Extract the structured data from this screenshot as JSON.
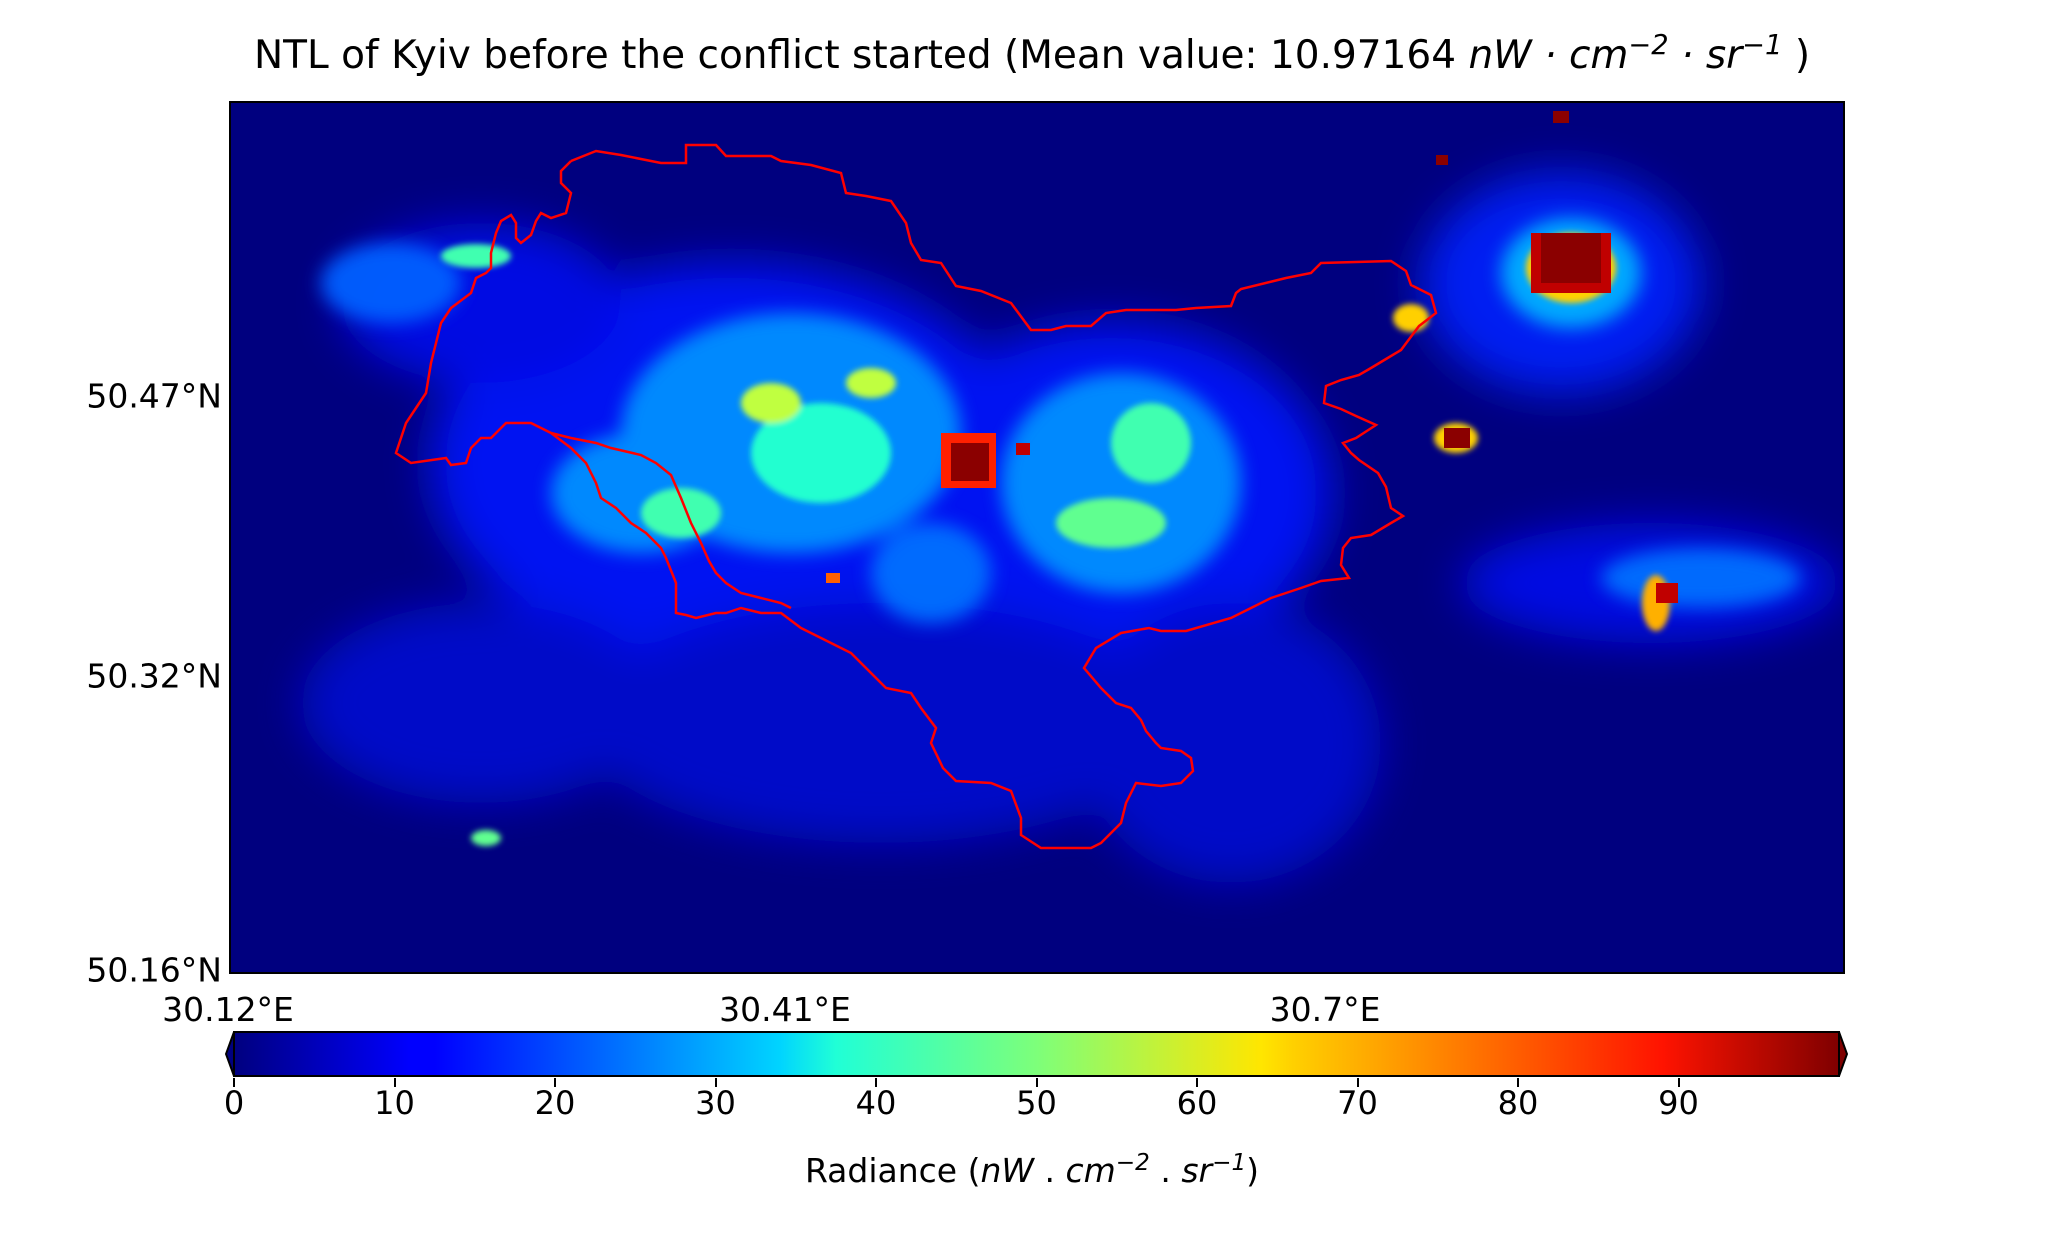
{
  "map": {
    "title_prefix": "NTL of Kyiv before the conflict started (Mean value: 10.97164 ",
    "title_unit_main": "nW · cm",
    "title_unit_exp1": "−2",
    "title_unit_mid": " · sr",
    "title_unit_exp2": "−1",
    "title_suffix": " )",
    "latitude_ticks": [
      "50.47°N",
      "50.32°N",
      "50.16°N"
    ],
    "longitude_ticks": [
      "30.12°E",
      "30.41°E",
      "30.7°E"
    ],
    "boundary_color": "#ff0000",
    "background_color": "#00007f",
    "colormap": "jet"
  },
  "colorbar": {
    "label_prefix": "Radiance (",
    "label_unit_a": "nW",
    "label_dot1": " . ",
    "label_unit_b": "cm",
    "label_exp1": "−2",
    "label_dot2": " . ",
    "label_unit_c": "sr",
    "label_exp2": "−1",
    "label_suffix": ")",
    "ticks": [
      "0",
      "10",
      "20",
      "30",
      "40",
      "50",
      "60",
      "70",
      "80",
      "90"
    ],
    "range": [
      0,
      100
    ],
    "extend": "both"
  }
}
